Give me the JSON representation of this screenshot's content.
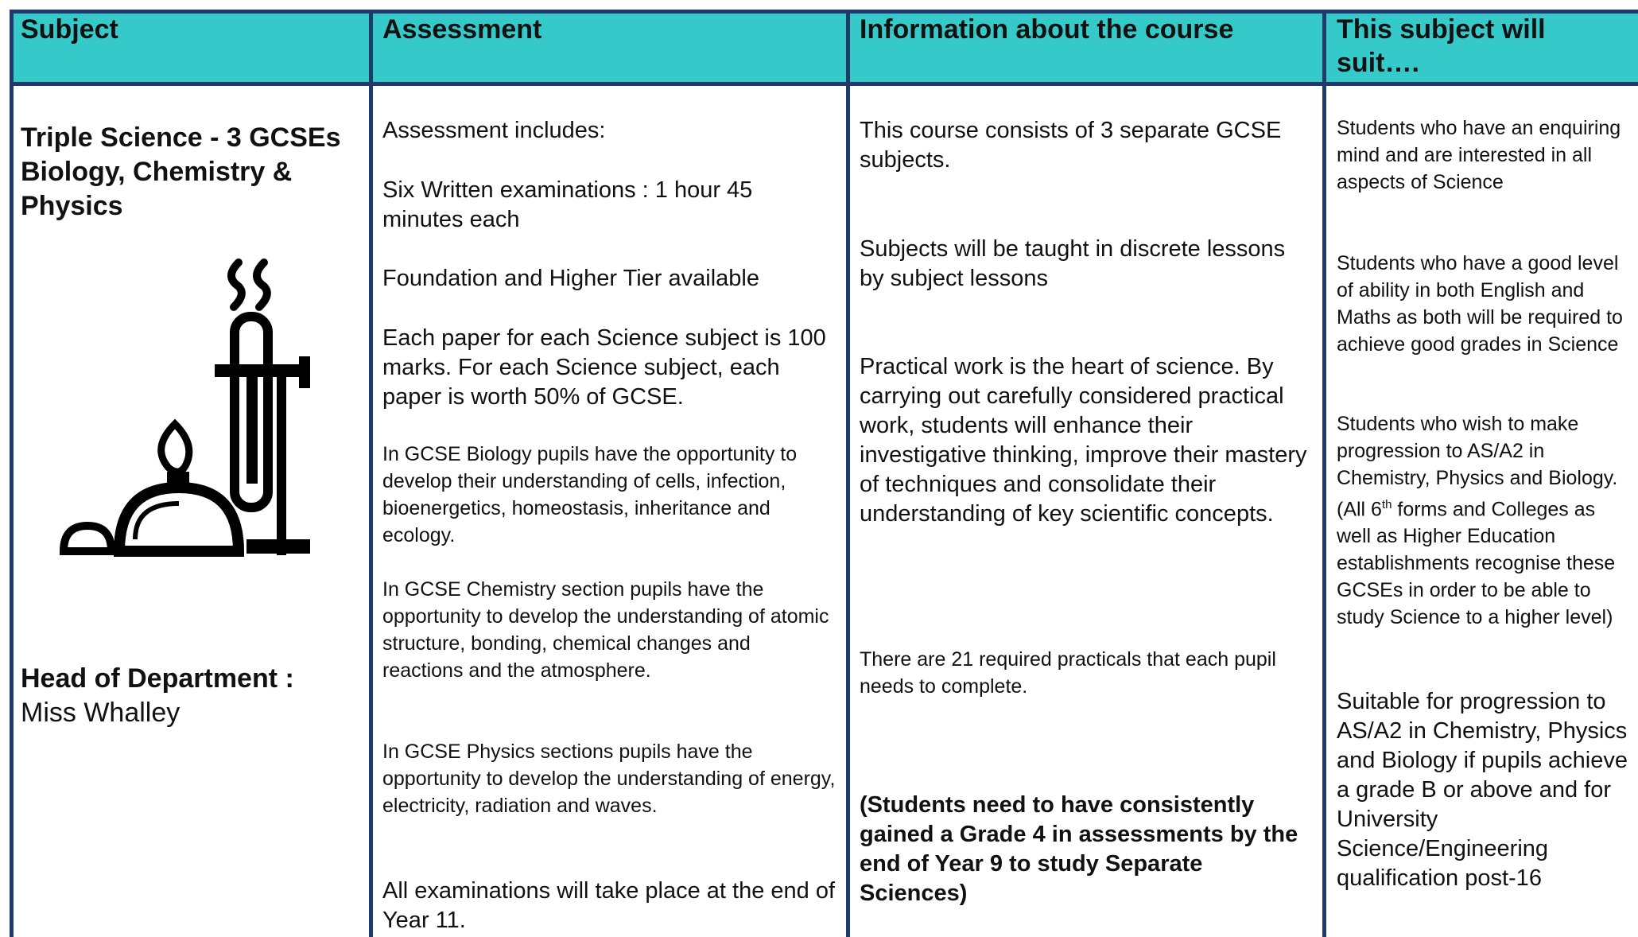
{
  "header": {
    "cells": [
      "Subject",
      "Assessment",
      "Information about the course",
      "This subject will suit…."
    ]
  },
  "subject": {
    "title": "Triple Science - 3 GCSEs Biology, Chemistry & Physics",
    "hod_label": "Head of Department :",
    "hod_name": "Miss Whalley"
  },
  "assessment": {
    "paragraphs": [
      "Assessment includes:",
      "Six Written examinations : 1 hour 45 minutes each",
      "Foundation and Higher Tier available",
      "Each paper for each Science subject is 100 marks.  For each Science subject, each paper is worth 50% of GCSE.",
      "In GCSE Biology pupils have the opportunity to develop their understanding of cells, infection, bioenergetics, homeostasis, inheritance and ecology.",
      "In GCSE Chemistry section pupils have the opportunity to develop the understanding of atomic structure, bonding, chemical changes and reactions and the atmosphere.",
      "In GCSE Physics sections pupils have the opportunity to develop the understanding of energy, electricity, radiation and waves.",
      "All examinations will take place at the end of Year 11."
    ]
  },
  "information": {
    "paragraphs": [
      "This course consists of 3 separate GCSE subjects.",
      "Subjects will be taught in discrete lessons by subject lessons",
      "Practical work is the heart of science. By carrying out carefully considered practical work, students will enhance their investigative thinking, improve their mastery of techniques and consolidate their understanding of key scientific concepts.",
      "There are 21 required practicals that each pupil needs to complete.",
      "(Students need to have consistently gained a Grade 4 in assessments by the end of Year 9 to study Separate Sciences)"
    ]
  },
  "suit": {
    "paragraphs": [
      [
        "Students who have an enquiring mind and are interested in all aspects of Science"
      ],
      [
        "Students who have a good level of ability in both English and Maths as both will be required to achieve good grades in Science"
      ],
      [
        "Students who wish to make progression to AS/A2 in Chemistry, Physics and Biology. (All 6",
        "th",
        " forms and Colleges as well as Higher Education establishments recognise these GCSEs in order to be able to study Science to a higher level)"
      ],
      [
        "Suitable for progression to AS/A2 in Chemistry, Physics and Biology if pupils achieve a grade B or above and for University Science/Engineering qualification post-16"
      ]
    ]
  }
}
